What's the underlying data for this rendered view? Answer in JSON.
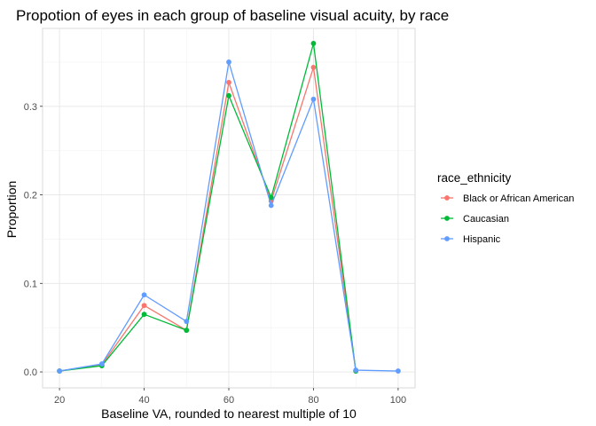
{
  "chart_data": {
    "type": "line",
    "title": "Propotion of eyes in each group of baseline visual acuity, by race",
    "xlabel": "Baseline VA, rounded to nearest multiple of 10",
    "ylabel": "Proportion",
    "x": [
      20,
      30,
      40,
      50,
      60,
      70,
      80,
      90,
      100
    ],
    "xticks": [
      20,
      40,
      60,
      80,
      100
    ],
    "yticks": [
      0.0,
      0.1,
      0.2,
      0.3
    ],
    "ytick_labels": [
      "0.0",
      "0.1",
      "0.2",
      "0.3"
    ],
    "xlim": [
      16,
      104
    ],
    "ylim": [
      -0.018,
      0.388
    ],
    "grid": true,
    "legend": {
      "title": "race_ethnicity",
      "position": "right"
    },
    "series": [
      {
        "name": "Black or African American",
        "color": "#F8766D",
        "x": [
          20,
          30,
          40,
          50,
          60,
          70,
          80,
          90
        ],
        "values": [
          0.001,
          0.008,
          0.075,
          0.047,
          0.327,
          0.193,
          0.344,
          0.001
        ]
      },
      {
        "name": "Caucasian",
        "color": "#00BA38",
        "x": [
          20,
          30,
          40,
          50,
          60,
          70,
          80,
          90
        ],
        "values": [
          0.001,
          0.007,
          0.065,
          0.047,
          0.312,
          0.197,
          0.371,
          0.001
        ]
      },
      {
        "name": "Hispanic",
        "color": "#619CFF",
        "x": [
          20,
          30,
          40,
          50,
          60,
          70,
          80,
          90,
          100
        ],
        "values": [
          0.001,
          0.009,
          0.087,
          0.057,
          0.35,
          0.188,
          0.308,
          0.002,
          0.001
        ]
      }
    ]
  }
}
